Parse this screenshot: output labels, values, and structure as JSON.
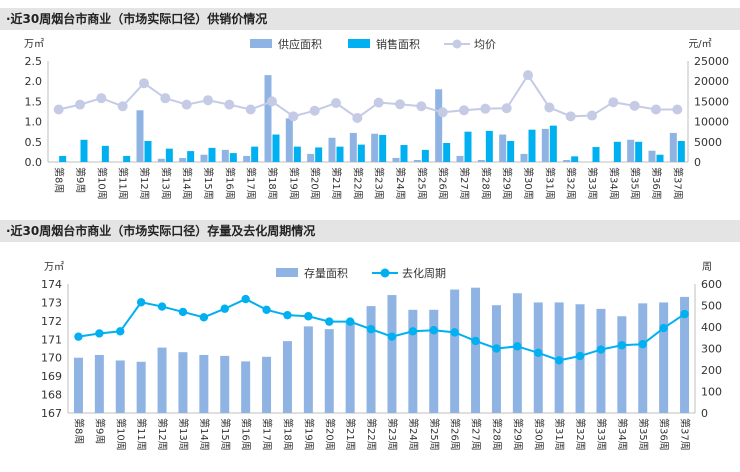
{
  "chart_data": [
    {
      "type": "bar",
      "title": "·近30周烟台市商业（市场实际口径）供销价情况",
      "y_left_unit": "万㎡",
      "y_right_unit": "元/㎡",
      "ylim": [
        0,
        2.5
      ],
      "y2lim": [
        0,
        25000
      ],
      "y_ticks": [
        "0.0",
        "0.5",
        "1.0",
        "1.5",
        "2.0",
        "2.5"
      ],
      "y2_ticks": [
        "0",
        "5000",
        "10000",
        "15000",
        "20000",
        "25000"
      ],
      "categories": [
        "第8周",
        "第9周",
        "第10周",
        "第11周",
        "第12周",
        "第13周",
        "第14周",
        "第15周",
        "第16周",
        "第17周",
        "第18周",
        "第19周",
        "第20周",
        "第21周",
        "第22周",
        "第23周",
        "第24周",
        "第25周",
        "第26周",
        "第27周",
        "第28周",
        "第29周",
        "第30周",
        "第31周",
        "第32周",
        "第33周",
        "第34周",
        "第35周",
        "第36周",
        "第37周"
      ],
      "series": [
        {
          "name": "供应面积",
          "type": "bar",
          "axis": "left",
          "color": "#8fb4e3",
          "values": [
            0,
            0,
            0,
            0,
            1.28,
            0.08,
            0.1,
            0.18,
            0.3,
            0.15,
            2.15,
            1.08,
            0.2,
            0.6,
            0.72,
            0.7,
            0.1,
            0.05,
            1.8,
            0.15,
            0.05,
            0.68,
            0.2,
            0.82,
            0.05,
            0,
            0,
            0.55,
            0.28,
            0.72
          ]
        },
        {
          "name": "销售面积",
          "type": "bar",
          "axis": "left",
          "color": "#00b0f0",
          "values": [
            0.15,
            0.55,
            0.4,
            0.15,
            0.52,
            0.33,
            0.27,
            0.35,
            0.22,
            0.38,
            0.68,
            0.38,
            0.36,
            0.38,
            0.43,
            0.67,
            0.42,
            0.3,
            0.47,
            0.75,
            0.77,
            0.52,
            0.8,
            0.9,
            0.14,
            0.37,
            0.5,
            0.5,
            0.18,
            0.52
          ]
        },
        {
          "name": "均价",
          "type": "line",
          "axis": "right",
          "color": "#c5cbe5",
          "values": [
            13000,
            14200,
            15800,
            13800,
            19500,
            15800,
            14200,
            15300,
            14200,
            13000,
            15000,
            11300,
            12700,
            14600,
            10900,
            14700,
            14300,
            13800,
            12300,
            12800,
            13200,
            13300,
            21500,
            13500,
            11300,
            11500,
            14800,
            13900,
            13000,
            13000
          ]
        }
      ]
    },
    {
      "type": "bar",
      "title": "·近30周烟台市商业（市场实际口径）存量及去化周期情况",
      "y_left_unit": "万㎡",
      "y_right_unit": "周",
      "ylim": [
        167,
        174
      ],
      "y2lim": [
        0,
        600
      ],
      "y_ticks": [
        "167",
        "168",
        "169",
        "170",
        "171",
        "172",
        "173",
        "174"
      ],
      "y2_ticks": [
        "0",
        "100",
        "200",
        "300",
        "400",
        "500",
        "600"
      ],
      "categories": [
        "第8周",
        "第9周",
        "第10周",
        "第11周",
        "第12周",
        "第13周",
        "第14周",
        "第15周",
        "第16周",
        "第17周",
        "第18周",
        "第19周",
        "第20周",
        "第21周",
        "第22周",
        "第23周",
        "第24周",
        "第25周",
        "第26周",
        "第27周",
        "第28周",
        "第29周",
        "第30周",
        "第31周",
        "第32周",
        "第33周",
        "第34周",
        "第35周",
        "第36周",
        "第37周"
      ],
      "series": [
        {
          "name": "存量面积",
          "type": "bar",
          "axis": "left",
          "color": "#8fb4e3",
          "values": [
            170.0,
            170.15,
            169.85,
            169.78,
            170.55,
            170.3,
            170.15,
            170.1,
            169.8,
            170.05,
            170.9,
            171.7,
            171.55,
            172.0,
            172.8,
            173.4,
            172.6,
            172.6,
            173.7,
            173.8,
            172.85,
            173.5,
            173.0,
            173.0,
            172.9,
            172.65,
            172.25,
            172.95,
            173.0,
            173.3
          ]
        },
        {
          "name": "去化周期",
          "type": "line",
          "axis": "right",
          "color": "#00b0f0",
          "values": [
            355,
            370,
            380,
            515,
            495,
            470,
            445,
            485,
            530,
            480,
            455,
            450,
            425,
            425,
            390,
            355,
            380,
            385,
            375,
            335,
            300,
            310,
            280,
            245,
            265,
            295,
            315,
            320,
            395,
            460
          ]
        }
      ]
    }
  ]
}
